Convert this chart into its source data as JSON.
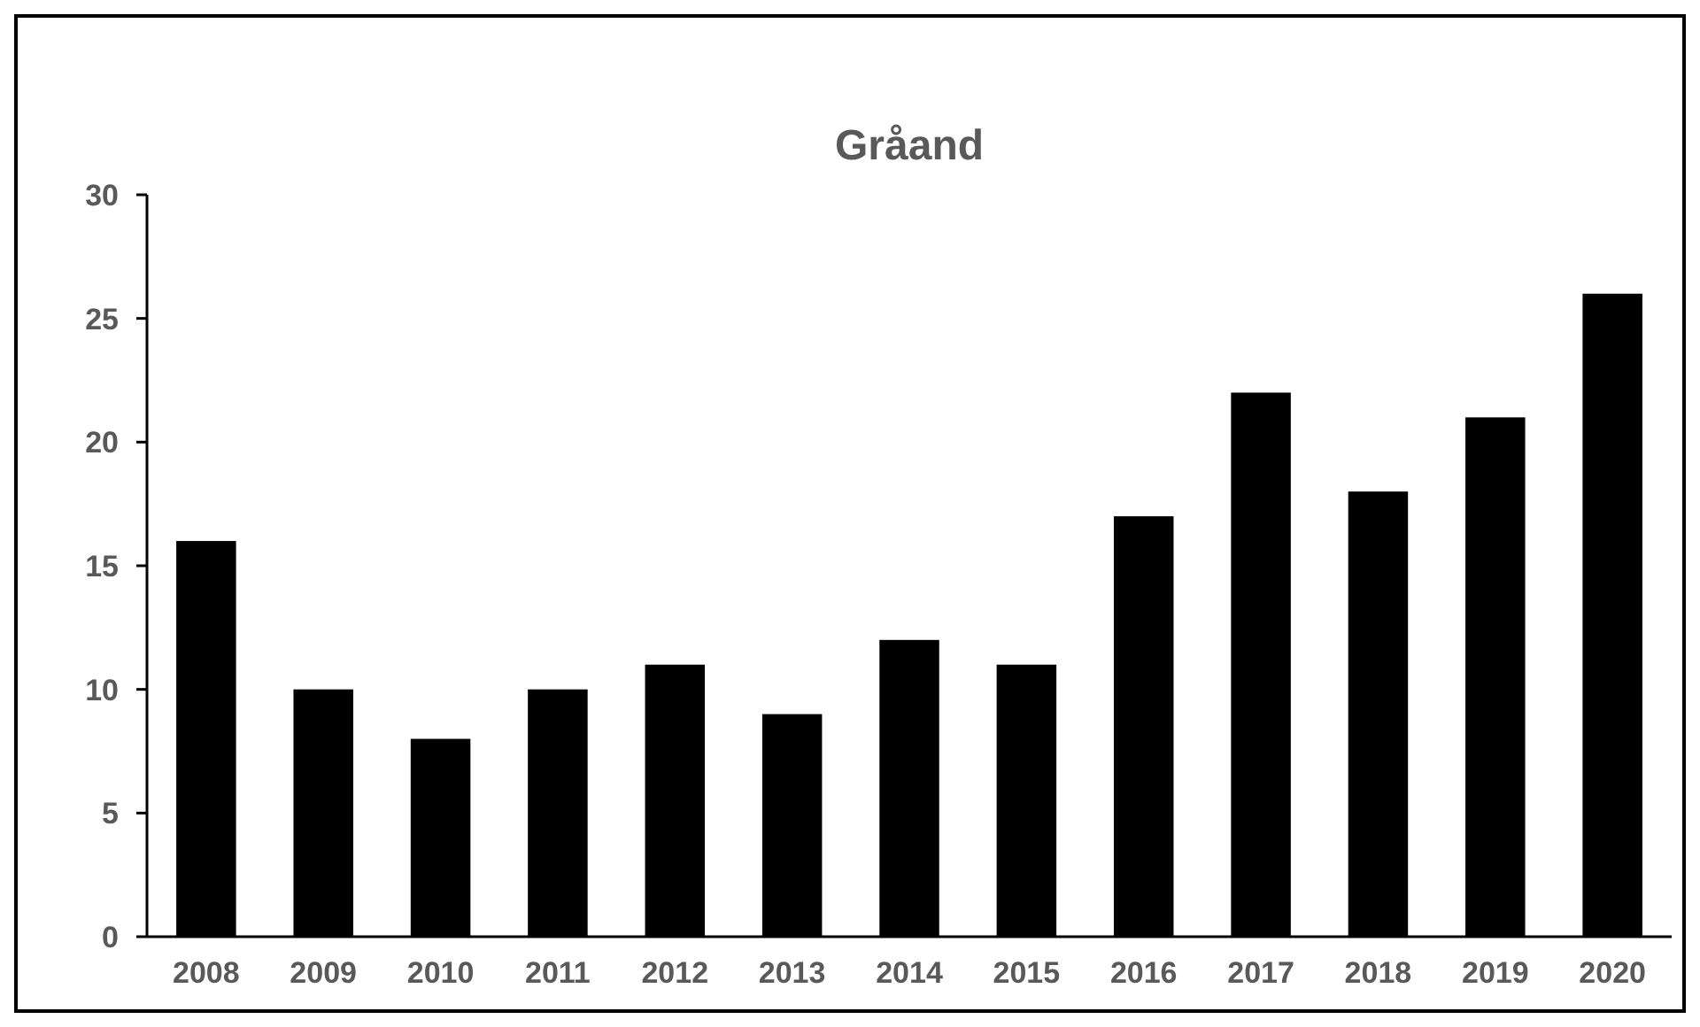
{
  "chart_data": {
    "type": "bar",
    "title": "Gråand",
    "categories": [
      "2008",
      "2009",
      "2010",
      "2011",
      "2012",
      "2013",
      "2014",
      "2015",
      "2016",
      "2017",
      "2018",
      "2019",
      "2020"
    ],
    "values": [
      16,
      10,
      8,
      10,
      11,
      9,
      12,
      11,
      17,
      22,
      18,
      21,
      26
    ],
    "color": "#000000",
    "ylim": [
      0,
      30
    ],
    "yticks": [
      0,
      5,
      10,
      15,
      20,
      25,
      30
    ],
    "grid": false
  }
}
